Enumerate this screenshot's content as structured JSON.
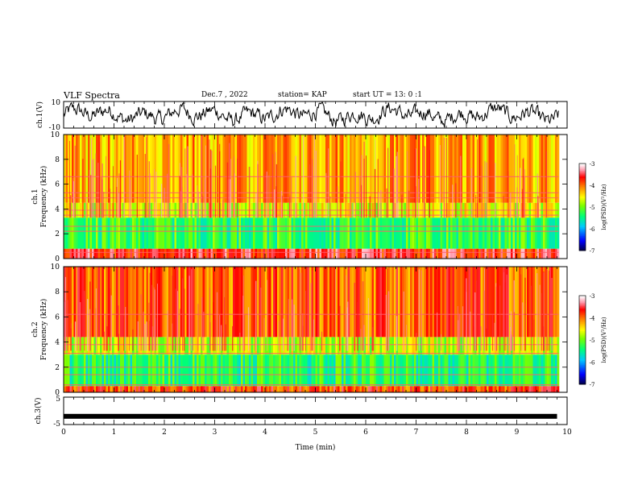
{
  "header": {
    "title": "VLF Spectra",
    "date": "Dec.7 , 2022",
    "station": "station= KAP",
    "start": "start UT = 13: 0 :1"
  },
  "chart_data": [
    {
      "type": "line",
      "name": "ch.1 waveform",
      "ylabel": "ch.1(V)",
      "ylim": [
        -10,
        10
      ],
      "ytick_labels": [
        "10",
        "-10"
      ],
      "xlim": [
        0,
        10
      ],
      "description_values": "noisy waveform fluctuating roughly between -8 and 9 V across 0–9.8 min"
    },
    {
      "type": "heatmap",
      "ylabel": "ch.1\nFrequency (kHz)",
      "ylim": [
        0,
        10
      ],
      "yticks": [
        0,
        2,
        4,
        6,
        8,
        10
      ],
      "xlim": [
        0,
        10
      ],
      "colorbar": {
        "label": "log(PSD)(V²/Hz)",
        "range": [
          -7,
          -3
        ],
        "ticks": [
          "-3",
          "-4",
          "-5",
          "-6",
          "-7"
        ]
      },
      "bands_kHz": [
        {
          "from": 0,
          "to": 0.8,
          "level": -3.6
        },
        {
          "from": 0.8,
          "to": 3.3,
          "level": -5.2
        },
        {
          "from": 3.3,
          "to": 4.5,
          "level": -4.6
        },
        {
          "from": 4.5,
          "to": 10,
          "level": -4.2
        }
      ],
      "lines_kHz": [
        0.5,
        2.2,
        2.6,
        3.5,
        3.9,
        4.9,
        5.3,
        6.6
      ]
    },
    {
      "type": "heatmap",
      "ylabel": "ch.2\nFrequency (kHz)",
      "ylim": [
        0,
        10
      ],
      "yticks": [
        0,
        2,
        4,
        6,
        8,
        10
      ],
      "xlim": [
        0,
        10
      ],
      "colorbar": {
        "label": "log(PSD)(V²/Hz)",
        "range": [
          -7,
          -3
        ],
        "ticks": [
          "-3",
          "-4",
          "-5",
          "-6",
          "-7"
        ]
      },
      "bands_kHz": [
        {
          "from": 0,
          "to": 0.5,
          "level": -3.8
        },
        {
          "from": 0.5,
          "to": 3.0,
          "level": -5.3
        },
        {
          "from": 3.0,
          "to": 4.4,
          "level": -4.7
        },
        {
          "from": 4.4,
          "to": 10,
          "level": -3.9
        }
      ],
      "lines_kHz": [
        0.6,
        1.4,
        2.0,
        3.1,
        3.8,
        6.2
      ]
    },
    {
      "type": "line",
      "name": "ch.3 waveform",
      "ylabel": "ch.3(V)",
      "ylim": [
        -5,
        5
      ],
      "ytick_labels": [
        "5",
        "-5"
      ],
      "xlim": [
        0,
        10
      ],
      "xticks": [
        0,
        1,
        2,
        3,
        4,
        5,
        6,
        7,
        8,
        9,
        10
      ],
      "xlabel": "Time (min)",
      "values_V": {
        "x_start": 0,
        "x_end": 9.8,
        "level": -2
      }
    }
  ]
}
